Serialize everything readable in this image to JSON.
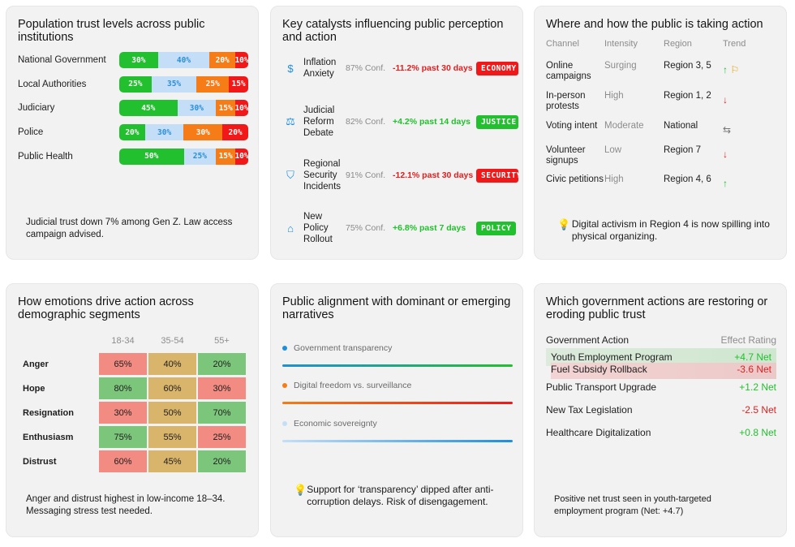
{
  "colors": {
    "green": "#22c02e",
    "blue_light": "#c5def8",
    "orange": "#f57c17",
    "red": "#f01818",
    "accent_blue": "#1f8fd8",
    "heat_red": "#f28b82",
    "heat_amber": "#d9b46b",
    "heat_green": "#7cc67c"
  },
  "trust": {
    "title": "Population trust levels across public institutions",
    "rows": [
      {
        "label": "National Government",
        "segs": [
          "30%",
          "40%",
          "20%",
          "10%"
        ],
        "pct": [
          30,
          40,
          20,
          10
        ]
      },
      {
        "label": "Local Authorities",
        "segs": [
          "25%",
          "35%",
          "25%",
          "15%"
        ],
        "pct": [
          25,
          35,
          25,
          15
        ]
      },
      {
        "label": "Judiciary",
        "segs": [
          "45%",
          "30%",
          "15%",
          "10%"
        ],
        "pct": [
          45,
          30,
          15,
          10
        ]
      },
      {
        "label": "Police",
        "segs": [
          "20%",
          "30%",
          "30%",
          "20%"
        ],
        "pct": [
          20,
          30,
          30,
          20
        ]
      },
      {
        "label": "Public Health",
        "segs": [
          "50%",
          "25%",
          "15%",
          "10%"
        ],
        "pct": [
          50,
          25,
          15,
          10
        ]
      }
    ],
    "note": "Judicial trust down 7% among Gen Z. Law access campaign advised."
  },
  "catalysts": {
    "title": "Key catalysts influencing public perception and action",
    "items": [
      {
        "icon": "dollar-icon",
        "glyph": "$",
        "name": "Inflation Anxiety",
        "conf": "87% Conf.",
        "change": "-11.2% past 30 days",
        "tag": "ECONOMY",
        "trend": "down"
      },
      {
        "icon": "gavel-icon",
        "glyph": "⚖",
        "name": "Judicial Reform Debate",
        "conf": "82% Conf.",
        "change": "+4.2% past 14 days",
        "tag": "JUSTICE",
        "trend": "up"
      },
      {
        "icon": "shield-icon",
        "glyph": "⛉",
        "name": "Regional Security Incidents",
        "conf": "91% Conf.",
        "change": "-12.1% past 30 days",
        "tag": "SECURITY",
        "trend": "down"
      },
      {
        "icon": "bank-icon",
        "glyph": "⌂",
        "name": "New Policy Rollout",
        "conf": "75% Conf.",
        "change": "+6.8% past 7 days",
        "tag": "POLICY",
        "trend": "up"
      }
    ]
  },
  "channels": {
    "title": "Where and how the public is taking action",
    "headers": [
      "Channel",
      "Intensity",
      "Region",
      "Trend"
    ],
    "rows": [
      {
        "channel": "Online campaigns",
        "intensity": "Surging",
        "region": "Region 3, 5",
        "trend": "up",
        "trend_glyph": "↑",
        "flag": true
      },
      {
        "channel": "In-person protests",
        "intensity": "High",
        "region": "Region 1, 2",
        "trend": "down",
        "trend_glyph": "↓",
        "flag": false
      },
      {
        "channel": "Voting intent",
        "intensity": "Moderate",
        "region": "National",
        "trend": "flat",
        "trend_glyph": "⇆",
        "flag": false
      },
      {
        "channel": "Volunteer signups",
        "intensity": "Low",
        "region": "Region 7",
        "trend": "down",
        "trend_glyph": "↓",
        "flag": false
      },
      {
        "channel": "Civic petitions",
        "intensity": "High",
        "region": "Region 4, 6",
        "trend": "up",
        "trend_glyph": "↑",
        "flag": false
      }
    ],
    "insight": "Digital activism in Region 4 is now spilling into physical organizing."
  },
  "emotions": {
    "title": "How emotions drive action across demographic segments",
    "columns": [
      "18-34",
      "35-54",
      "55+"
    ],
    "rows": [
      {
        "label": "Anger",
        "values": [
          "65%",
          "40%",
          "20%"
        ],
        "levels": [
          "red",
          "amber",
          "green"
        ]
      },
      {
        "label": "Hope",
        "values": [
          "80%",
          "60%",
          "30%"
        ],
        "levels": [
          "green",
          "amber",
          "red"
        ]
      },
      {
        "label": "Resignation",
        "values": [
          "30%",
          "50%",
          "70%"
        ],
        "levels": [
          "red",
          "amber",
          "green"
        ]
      },
      {
        "label": "Enthusiasm",
        "values": [
          "75%",
          "55%",
          "25%"
        ],
        "levels": [
          "green",
          "amber",
          "red"
        ]
      },
      {
        "label": "Distrust",
        "values": [
          "60%",
          "45%",
          "20%"
        ],
        "levels": [
          "red",
          "amber",
          "green"
        ]
      }
    ],
    "note": "Anger and distrust highest in low-income 18–34. Messaging stress test needed."
  },
  "narratives": {
    "title": "Public alignment with dominant or emerging narratives",
    "items": [
      {
        "label": "Government transparency",
        "color": "#1f8fd8",
        "line": "linear-gradient(90deg,#1f8fd8,#22c02e)"
      },
      {
        "label": "Digital freedom vs. surveillance",
        "color": "#f57c17",
        "line": "linear-gradient(90deg,#f57c17,#f01818)"
      },
      {
        "label": "Economic sovereignty",
        "color": "#c5def8",
        "line": "linear-gradient(90deg,#c5def8,#1f8fd8)"
      }
    ],
    "insight": "Support for ‘transparency’ dipped after anti-corruption delays. Risk of disengagement."
  },
  "gov_actions": {
    "title": "Which government actions are restoring or eroding public trust",
    "headers": [
      "Government Action",
      "Effect Rating"
    ],
    "rows": [
      {
        "action": "Youth Employment Program",
        "rating": "+4.7 Net",
        "positive": true
      },
      {
        "action": "Fuel Subsidy Rollback",
        "rating": "-3.6 Net",
        "positive": false
      },
      {
        "action": "Public Transport Upgrade",
        "rating": "+1.2 Net",
        "positive": true
      },
      {
        "action": "New Tax Legislation",
        "rating": "-2.5 Net",
        "positive": false
      },
      {
        "action": "Healthcare Digitalization",
        "rating": "+0.8 Net",
        "positive": true
      }
    ],
    "note": "Positive net trust seen in youth-targeted employment program (Net: +4.7)"
  }
}
